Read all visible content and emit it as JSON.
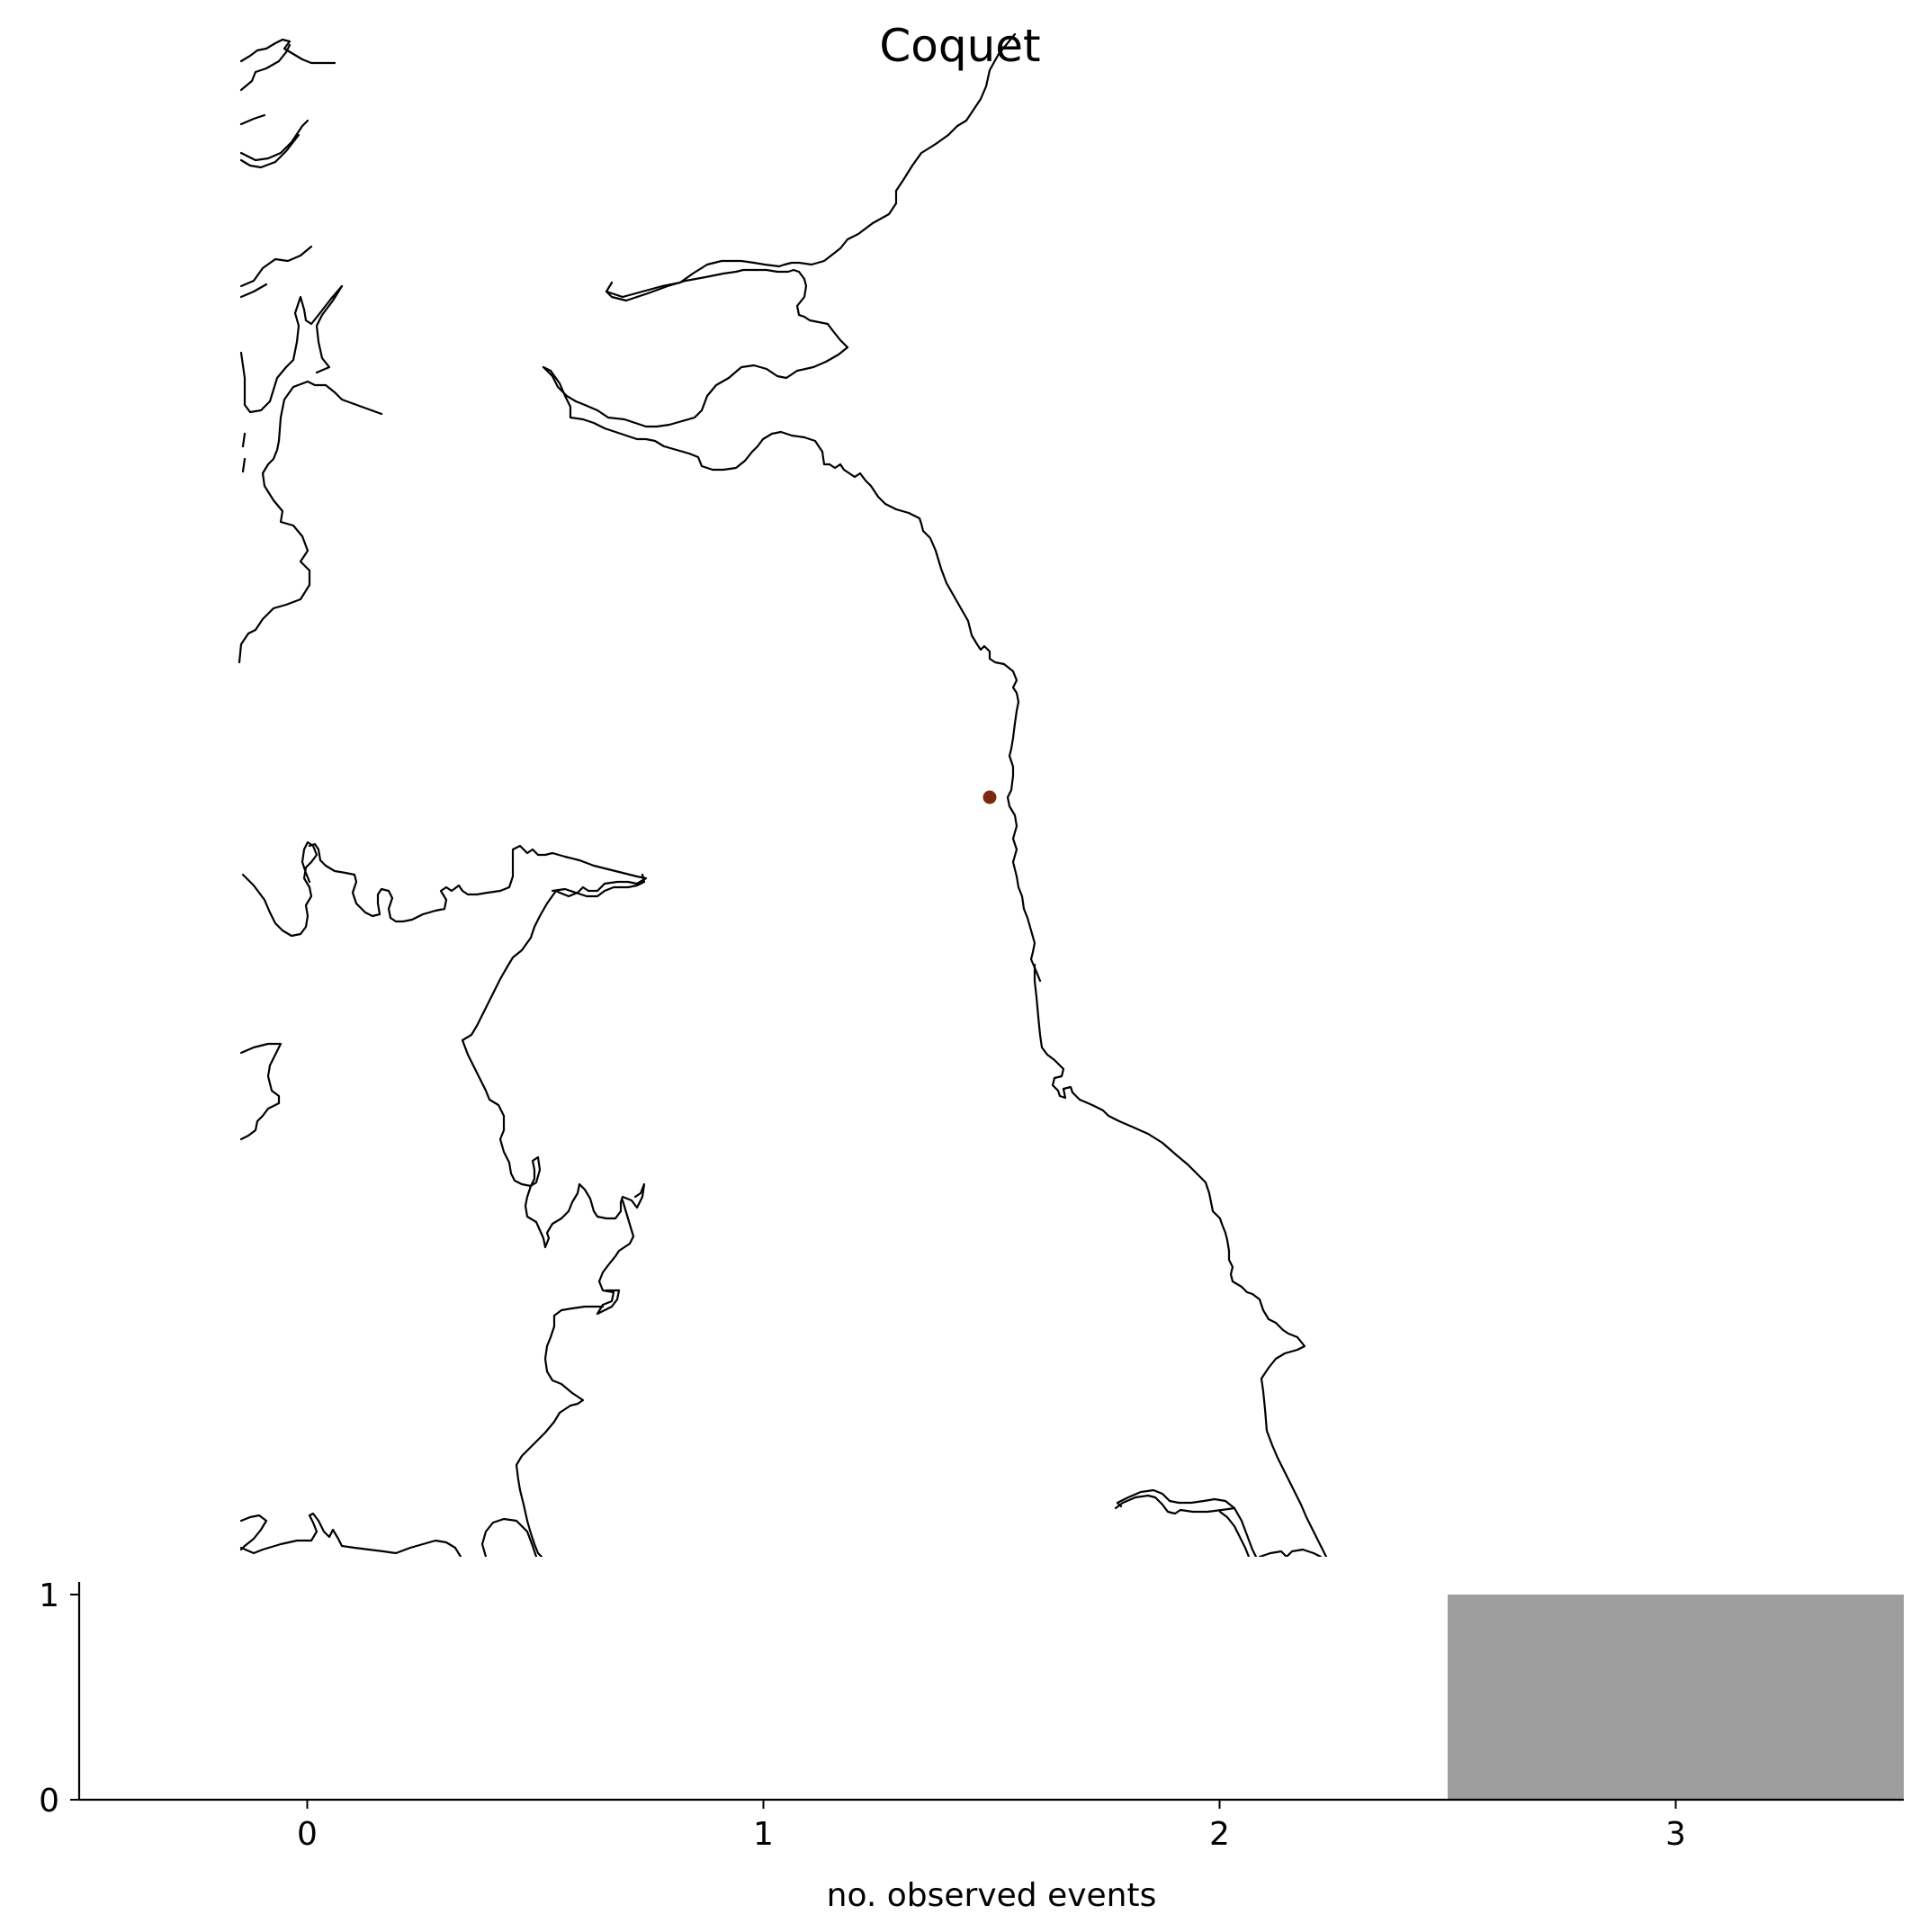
{
  "title": "Coquet",
  "map": {
    "marker_color": "#7a2a10",
    "coastline_color": "#000000"
  },
  "chart_data": {
    "type": "bar",
    "categories": [
      0,
      1,
      2,
      3
    ],
    "values": [
      0,
      0,
      0,
      1
    ],
    "xlabel": "no. observed events",
    "ylabel": "",
    "xlim": [
      -0.5,
      3.5
    ],
    "ylim": [
      0,
      1
    ],
    "xticks": [
      "0",
      "1",
      "2",
      "3"
    ],
    "yticks": [
      "0",
      "1"
    ],
    "bar_color": "#9e9e9e",
    "grid": false
  }
}
